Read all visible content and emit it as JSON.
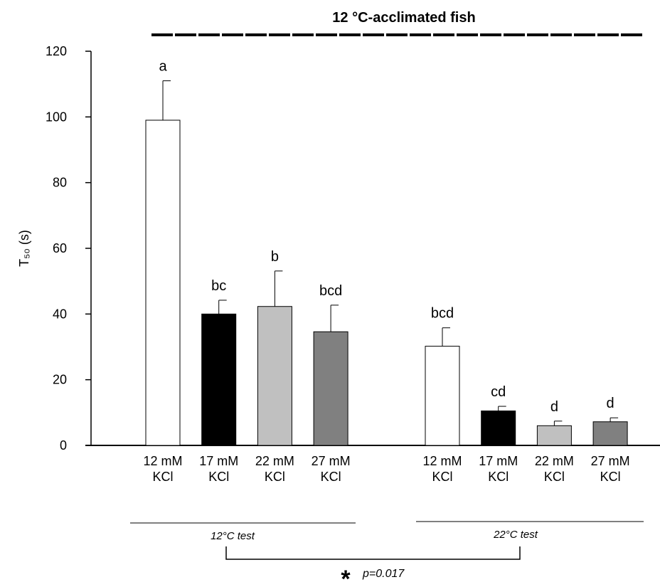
{
  "chart_data": {
    "type": "bar",
    "title": "12 °C-acclimated fish",
    "y_label": "T₅₀ (s)",
    "ylim": [
      0,
      120
    ],
    "yticks": [
      0,
      20,
      40,
      60,
      80,
      100,
      120
    ],
    "groups": [
      {
        "name": "12°C test",
        "categories": [
          [
            "12 mM",
            "KCl"
          ],
          [
            "17 mM",
            "KCl"
          ],
          [
            "22 mM",
            "KCl"
          ],
          [
            "27 mM",
            "KCl"
          ]
        ],
        "values": [
          99,
          40,
          42.3,
          34.6
        ],
        "errors": [
          12,
          4.2,
          10.8,
          8.1
        ],
        "letters": [
          "a",
          "bc",
          "b",
          "bcd"
        ],
        "colors": [
          "#ffffff",
          "#000000",
          "#c0c0c0",
          "#808080"
        ]
      },
      {
        "name": "22°C test",
        "categories": [
          [
            "12 mM",
            "KCl"
          ],
          [
            "17 mM",
            "KCl"
          ],
          [
            "22 mM",
            "KCl"
          ],
          [
            "27 mM",
            "KCl"
          ]
        ],
        "values": [
          30.2,
          10.5,
          6.0,
          7.2
        ],
        "errors": [
          5.6,
          1.4,
          1.4,
          1.2
        ],
        "letters": [
          "bcd",
          "cd",
          "d",
          "d"
        ],
        "colors": [
          "#ffffff",
          "#000000",
          "#c0c0c0",
          "#808080"
        ]
      }
    ],
    "significance": {
      "marker": "*",
      "p_label": "p=0.017"
    }
  }
}
